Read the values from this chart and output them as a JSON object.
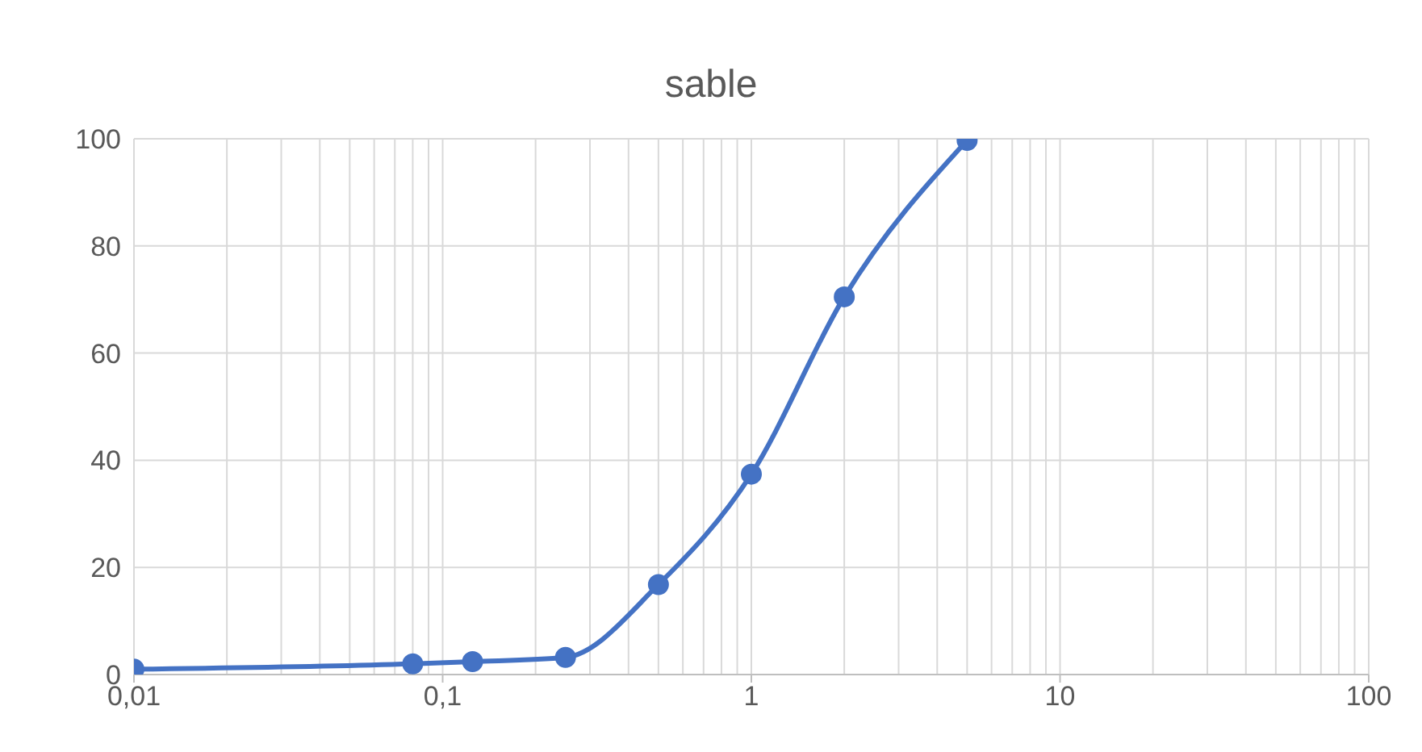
{
  "chart_data": {
    "type": "line",
    "title": "sable",
    "log": "x",
    "x": [
      0.01,
      0.08,
      0.125,
      0.25,
      0.5,
      1,
      2,
      5
    ],
    "series": [
      {
        "color": "#4472c4",
        "values": [
          1,
          2,
          2.4,
          3.2,
          16.8,
          37.4,
          70.5,
          99.7
        ]
      }
    ],
    "xlim": [
      0.01,
      100
    ],
    "xticks": [
      {
        "value": 0.01,
        "label": "0,01"
      },
      {
        "value": 0.1,
        "label": "0,1"
      },
      1,
      10,
      100
    ],
    "ylim": [
      0,
      100
    ],
    "yticks": [
      0,
      20,
      40,
      60,
      80,
      100
    ],
    "grid": true,
    "marker": "circle",
    "line_style": "solid"
  }
}
